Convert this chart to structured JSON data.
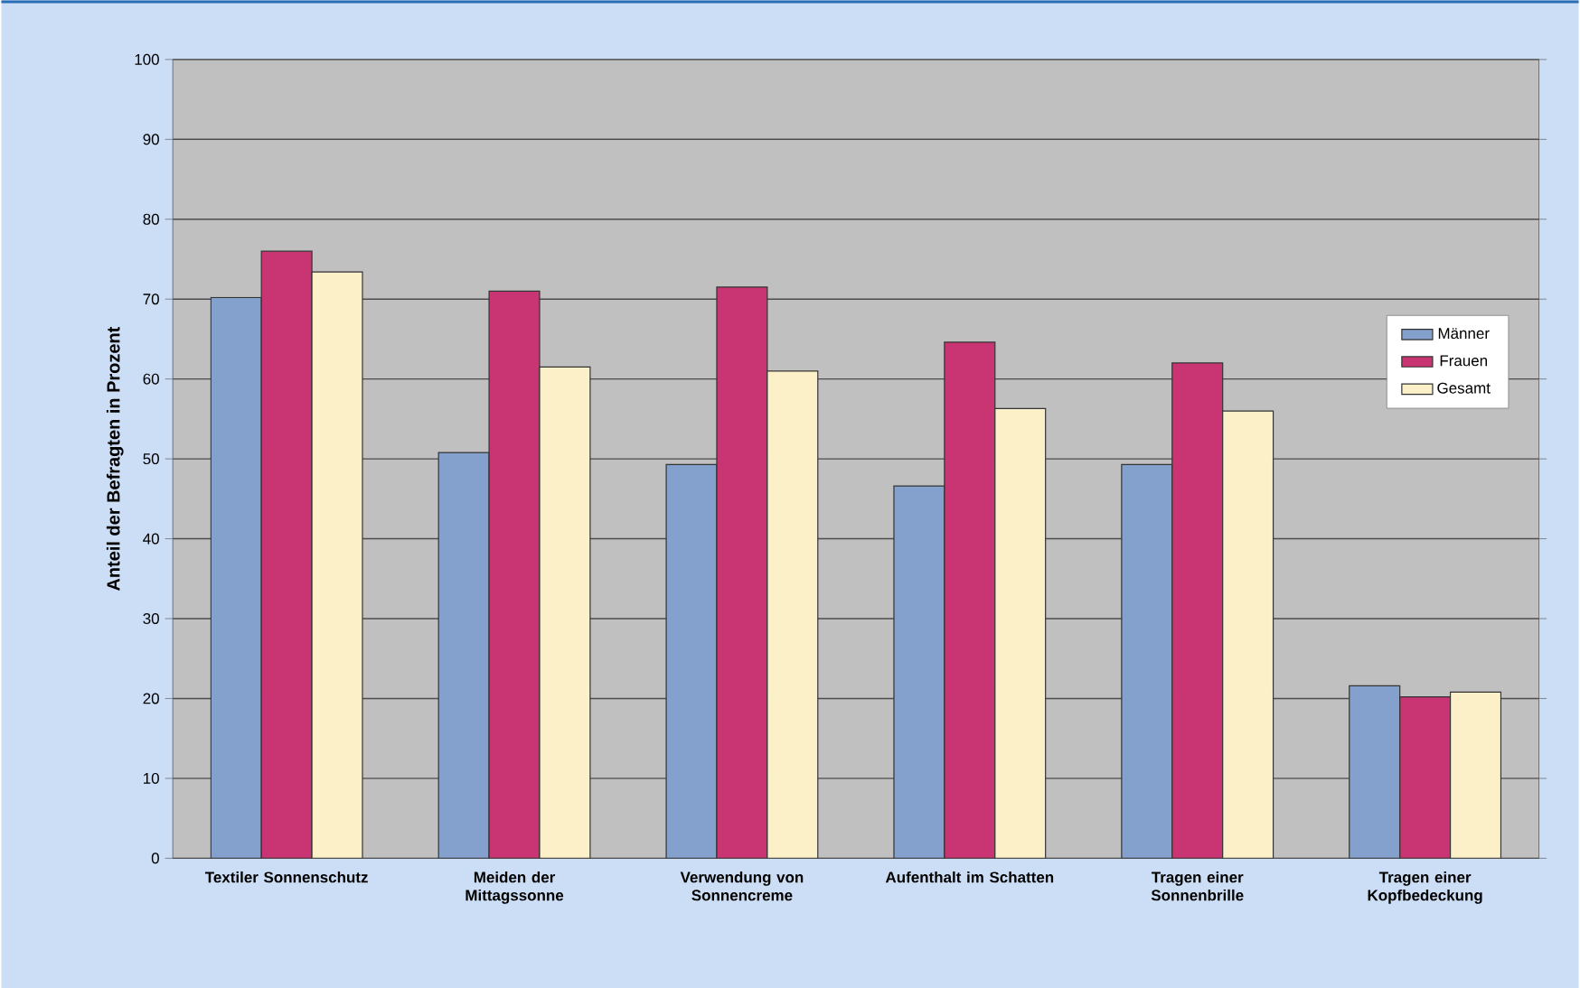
{
  "chart_data": {
    "type": "bar",
    "ylabel": "Anteil der Befragten in Prozent",
    "categories": [
      "Textiler Sonnenschutz",
      "Meiden der Mittagssonne",
      "Verwendung von Sonnencreme",
      "Aufenthalt im Schatten",
      "Tragen einer Sonnenbrille",
      "Tragen einer Kopfbedeckung"
    ],
    "series": [
      {
        "name": "Männer",
        "color": "#84a0cc",
        "values": [
          70.2,
          50.8,
          49.3,
          46.6,
          49.3,
          21.6
        ]
      },
      {
        "name": "Frauen",
        "color": "#c83572",
        "values": [
          76,
          71,
          71.5,
          64.6,
          62,
          20.2
        ]
      },
      {
        "name": "Gesamt",
        "color": "#fcf0c8",
        "values": [
          73.4,
          61.5,
          61,
          56.3,
          56,
          20.8
        ]
      }
    ],
    "ylim": [
      0,
      100
    ],
    "yticks": [
      0,
      10,
      20,
      30,
      40,
      50,
      60,
      70,
      80,
      90,
      100
    ],
    "grid": "y",
    "legend": "right"
  }
}
